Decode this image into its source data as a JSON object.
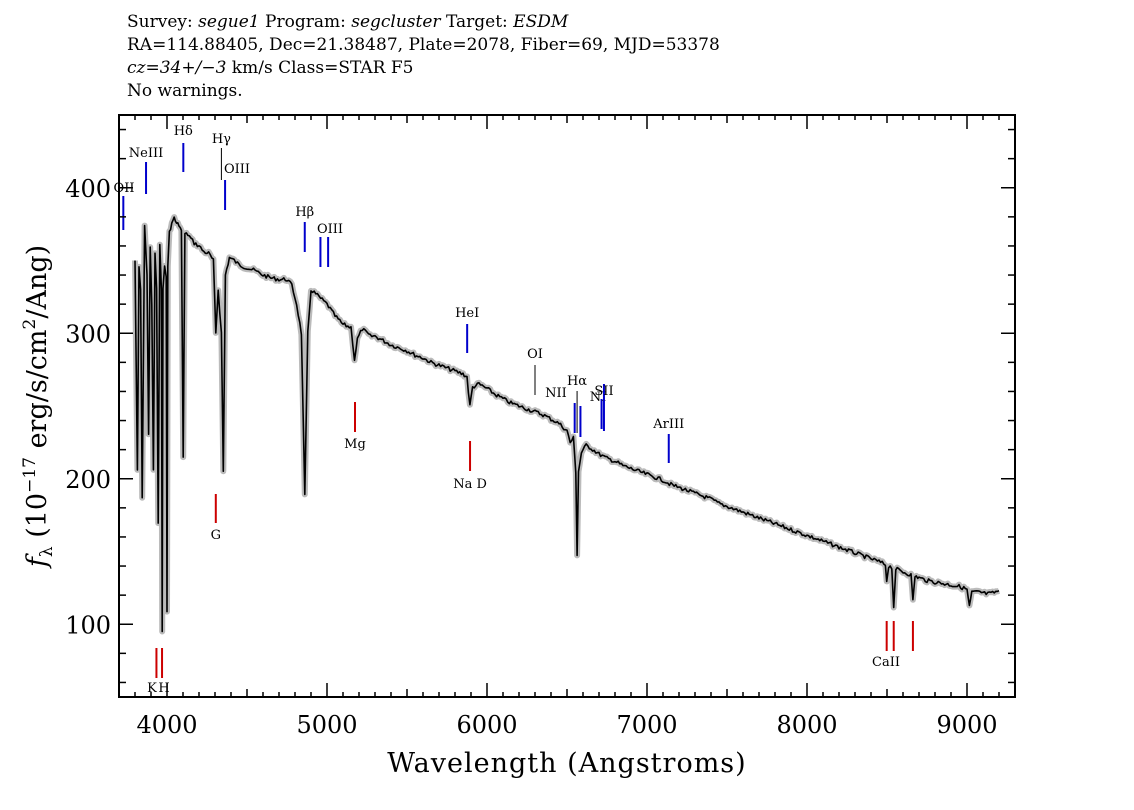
{
  "header": {
    "line1": {
      "survey_label": "Survey: ",
      "survey": "segue1",
      "program_label": " Program: ",
      "program": "segcluster",
      "target_label": " Target: ",
      "target": "ESDM"
    },
    "line2": "RA=114.88405, Dec=21.38487, Plate=2078, Fiber=69, MJD=53378",
    "line3": {
      "cz": "cz=34+/−3",
      "rest": " km/s Class=STAR F5"
    },
    "line4": "No warnings."
  },
  "chart_data": {
    "type": "line",
    "title": "",
    "xlabel": "Wavelength (Angstroms)",
    "ylabel": "fλ (10⁻¹⁷ erg/s/cm²/Ang)",
    "xlim": [
      3700,
      9300
    ],
    "ylim": [
      50,
      450
    ],
    "x_ticks": [
      4000,
      5000,
      6000,
      7000,
      8000,
      9000
    ],
    "y_ticks": [
      100,
      200,
      300,
      400
    ],
    "grid": false,
    "series": [
      {
        "color": "#000000",
        "points": [
          [
            3800,
            350
          ],
          [
            3815,
            205
          ],
          [
            3825,
            345
          ],
          [
            3835,
            330
          ],
          [
            3845,
            187
          ],
          [
            3860,
            375
          ],
          [
            3875,
            340
          ],
          [
            3885,
            230
          ],
          [
            3895,
            360
          ],
          [
            3905,
            320
          ],
          [
            3915,
            205
          ],
          [
            3925,
            355
          ],
          [
            3935,
            330
          ],
          [
            3945,
            170
          ],
          [
            3955,
            360
          ],
          [
            3965,
            330
          ],
          [
            3970,
            95
          ],
          [
            3975,
            330
          ],
          [
            3985,
            345
          ],
          [
            3995,
            340
          ],
          [
            4000,
            110
          ],
          [
            4005,
            345
          ],
          [
            4015,
            370
          ],
          [
            4030,
            375
          ],
          [
            4045,
            380
          ],
          [
            4060,
            375
          ],
          [
            4075,
            375
          ],
          [
            4090,
            370
          ],
          [
            4101,
            215
          ],
          [
            4112,
            368
          ],
          [
            4130,
            368
          ],
          [
            4150,
            365
          ],
          [
            4170,
            362
          ],
          [
            4200,
            360
          ],
          [
            4230,
            356
          ],
          [
            4260,
            355
          ],
          [
            4290,
            350
          ],
          [
            4305,
            300
          ],
          [
            4320,
            330
          ],
          [
            4340,
            300
          ],
          [
            4352,
            205
          ],
          [
            4365,
            340
          ],
          [
            4390,
            352
          ],
          [
            4420,
            350
          ],
          [
            4450,
            347
          ],
          [
            4500,
            345
          ],
          [
            4550,
            343
          ],
          [
            4600,
            340
          ],
          [
            4650,
            338
          ],
          [
            4700,
            337
          ],
          [
            4750,
            337
          ],
          [
            4780,
            333
          ],
          [
            4810,
            320
          ],
          [
            4840,
            300
          ],
          [
            4861,
            188
          ],
          [
            4880,
            300
          ],
          [
            4900,
            330
          ],
          [
            4950,
            325
          ],
          [
            5000,
            320
          ],
          [
            5050,
            312
          ],
          [
            5100,
            306
          ],
          [
            5150,
            304
          ],
          [
            5172,
            282
          ],
          [
            5190,
            296
          ],
          [
            5220,
            303
          ],
          [
            5270,
            298
          ],
          [
            5300,
            298
          ],
          [
            5350,
            295
          ],
          [
            5400,
            292
          ],
          [
            5450,
            290
          ],
          [
            5500,
            288
          ],
          [
            5550,
            285
          ],
          [
            5600,
            283
          ],
          [
            5650,
            280
          ],
          [
            5700,
            278
          ],
          [
            5750,
            276
          ],
          [
            5800,
            274
          ],
          [
            5850,
            272
          ],
          [
            5875,
            270
          ],
          [
            5893,
            250
          ],
          [
            5910,
            263
          ],
          [
            5950,
            265
          ],
          [
            6000,
            262
          ],
          [
            6050,
            258
          ],
          [
            6100,
            255
          ],
          [
            6150,
            252
          ],
          [
            6200,
            250
          ],
          [
            6250,
            248
          ],
          [
            6300,
            246
          ],
          [
            6350,
            244
          ],
          [
            6400,
            241
          ],
          [
            6450,
            238
          ],
          [
            6500,
            233
          ],
          [
            6520,
            225
          ],
          [
            6540,
            228
          ],
          [
            6555,
            205
          ],
          [
            6563,
            148
          ],
          [
            6572,
            205
          ],
          [
            6590,
            218
          ],
          [
            6620,
            223
          ],
          [
            6650,
            221
          ],
          [
            6700,
            217
          ],
          [
            6750,
            214
          ],
          [
            6800,
            212
          ],
          [
            6850,
            209
          ],
          [
            6900,
            207
          ],
          [
            6950,
            205
          ],
          [
            7000,
            203
          ],
          [
            7050,
            201
          ],
          [
            7100,
            199
          ],
          [
            7150,
            196
          ],
          [
            7200,
            194
          ],
          [
            7250,
            192
          ],
          [
            7300,
            190
          ],
          [
            7350,
            188
          ],
          [
            7400,
            186
          ],
          [
            7450,
            183
          ],
          [
            7500,
            181
          ],
          [
            7550,
            179
          ],
          [
            7600,
            177
          ],
          [
            7650,
            175
          ],
          [
            7700,
            173
          ],
          [
            7750,
            171
          ],
          [
            7800,
            169
          ],
          [
            7850,
            167
          ],
          [
            7900,
            165
          ],
          [
            7950,
            163
          ],
          [
            8000,
            161
          ],
          [
            8050,
            159
          ],
          [
            8100,
            157
          ],
          [
            8150,
            155
          ],
          [
            8200,
            153
          ],
          [
            8250,
            151
          ],
          [
            8300,
            149
          ],
          [
            8350,
            147
          ],
          [
            8400,
            145
          ],
          [
            8450,
            143
          ],
          [
            8490,
            141
          ],
          [
            8498,
            130
          ],
          [
            8510,
            140
          ],
          [
            8530,
            139
          ],
          [
            8542,
            112
          ],
          [
            8555,
            138
          ],
          [
            8600,
            136
          ],
          [
            8650,
            134
          ],
          [
            8662,
            116
          ],
          [
            8675,
            133
          ],
          [
            8700,
            132
          ],
          [
            8750,
            130
          ],
          [
            8800,
            129
          ],
          [
            8850,
            128
          ],
          [
            8900,
            127
          ],
          [
            8950,
            126
          ],
          [
            9000,
            124
          ],
          [
            9015,
            112
          ],
          [
            9030,
            122
          ],
          [
            9080,
            122
          ],
          [
            9120,
            121
          ],
          [
            9150,
            121
          ],
          [
            9200,
            123
          ]
        ]
      }
    ],
    "line_markers": [
      {
        "label": "OII",
        "wavelength": 3727,
        "group": "emission",
        "color": "#0000cc"
      },
      {
        "label": "NeIII",
        "wavelength": 3869,
        "group": "emission",
        "color": "#0000cc"
      },
      {
        "label": "Hδ",
        "wavelength": 4102,
        "group": "emission",
        "color": "#0000cc"
      },
      {
        "label": "Hγ",
        "wavelength": 4340,
        "group": "thin",
        "color": "#000000"
      },
      {
        "label": "OIII",
        "wavelength": 4363,
        "group": "emission",
        "color": "#0000cc"
      },
      {
        "label": "Hβ",
        "wavelength": 4861,
        "group": "emission",
        "color": "#0000cc"
      },
      {
        "label": "OIII",
        "wavelength": 4959,
        "group": "emission",
        "color": "#0000cc"
      },
      {
        "label": "",
        "wavelength": 5007,
        "group": "emission",
        "color": "#0000cc"
      },
      {
        "label": "HeI",
        "wavelength": 5876,
        "group": "emission",
        "color": "#0000cc"
      },
      {
        "label": "OI",
        "wavelength": 6300,
        "group": "thin",
        "color": "#000000"
      },
      {
        "label": "NII",
        "wavelength": 6548,
        "group": "emission",
        "color": "#0000cc"
      },
      {
        "label": "Hα",
        "wavelength": 6563,
        "group": "thin",
        "color": "#000000"
      },
      {
        "label": "",
        "wavelength": 6584,
        "group": "emission",
        "color": "#0000cc"
      },
      {
        "label": "NI",
        "wavelength": 6716,
        "group": "emission",
        "color": "#0000cc"
      },
      {
        "label": "SII",
        "wavelength": 6731,
        "group": "emission",
        "color": "#0000cc"
      },
      {
        "label": "ArIII",
        "wavelength": 7136,
        "group": "emission",
        "color": "#0000cc"
      },
      {
        "label": "K",
        "wavelength": 3934,
        "group": "absorption",
        "color": "#cc0000"
      },
      {
        "label": "H",
        "wavelength": 3969,
        "group": "absorption",
        "color": "#cc0000"
      },
      {
        "label": "G",
        "wavelength": 4305,
        "group": "absorption",
        "color": "#cc0000"
      },
      {
        "label": "Mg",
        "wavelength": 5175,
        "group": "absorption",
        "color": "#cc0000"
      },
      {
        "label": "Na D",
        "wavelength": 5894,
        "group": "absorption",
        "color": "#cc0000"
      },
      {
        "label": "CaII",
        "wavelength": 8498,
        "group": "absorption",
        "color": "#cc0000"
      },
      {
        "label": "",
        "wavelength": 8542,
        "group": "absorption",
        "color": "#cc0000"
      },
      {
        "label": "",
        "wavelength": 8662,
        "group": "absorption",
        "color": "#cc0000"
      }
    ]
  }
}
